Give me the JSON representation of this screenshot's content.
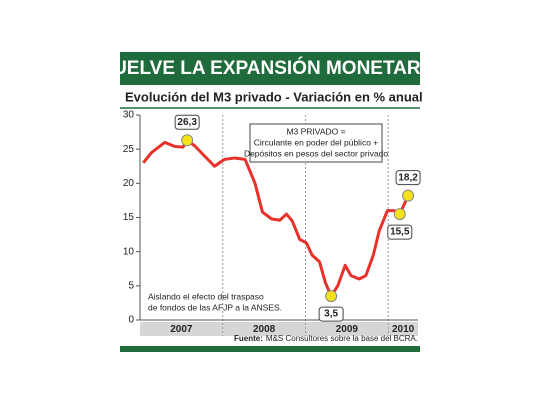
{
  "chart_data": {
    "type": "line",
    "title": "VUELVE LA EXPANSIÓN MONETARIA",
    "subtitle": "Evolución del M3 privado - Variación en % anual",
    "x": [
      2007.04,
      2007.14,
      2007.3,
      2007.42,
      2007.52,
      2007.57,
      2007.66,
      2007.78,
      2007.9,
      2008.02,
      2008.14,
      2008.27,
      2008.39,
      2008.48,
      2008.59,
      2008.69,
      2008.77,
      2008.84,
      2008.93,
      2009.01,
      2009.08,
      2009.17,
      2009.24,
      2009.31,
      2009.39,
      2009.48,
      2009.55,
      2009.65,
      2009.73,
      2009.82,
      2009.89,
      2009.99,
      2010.07,
      2010.14,
      2010.24
    ],
    "series": [
      {
        "color": "#e8312a",
        "values": [
          23,
          24.5,
          26,
          25.4,
          25.3,
          26.3,
          25.5,
          24,
          22.5,
          23.5,
          23.7,
          23.5,
          20,
          15.8,
          14.8,
          14.6,
          15.5,
          14.5,
          11.8,
          11.3,
          9.5,
          8.5,
          5.5,
          3.5,
          5,
          8,
          6.5,
          6,
          6.5,
          9.5,
          13,
          16,
          16,
          15.5,
          18.2
        ],
        "value_labels": [
          null,
          null,
          null,
          null,
          null,
          "26,3",
          null,
          null,
          null,
          null,
          null,
          null,
          null,
          null,
          null,
          null,
          null,
          null,
          null,
          null,
          null,
          null,
          null,
          "3,5",
          null,
          null,
          null,
          null,
          null,
          null,
          null,
          null,
          null,
          "15,5",
          "18,2"
        ]
      }
    ],
    "xlim": [
      2007,
      2010.36
    ],
    "xticks": [
      2007,
      2008,
      2009,
      2010
    ],
    "ylim": [
      0,
      30
    ],
    "yticks": [
      0,
      5,
      10,
      15,
      20,
      25,
      30
    ],
    "definition_box": [
      "M3 PRIVADO =",
      "Circulante en poder del público +",
      "Depósitos en pesos del sector privado"
    ],
    "note": [
      "Aislando el efecto del traspaso",
      "de fondos de las AFJP a la ANSES."
    ],
    "source": {
      "label": "Fuente:",
      "text": "M&S Consultores sobre la base del BCRA."
    }
  }
}
